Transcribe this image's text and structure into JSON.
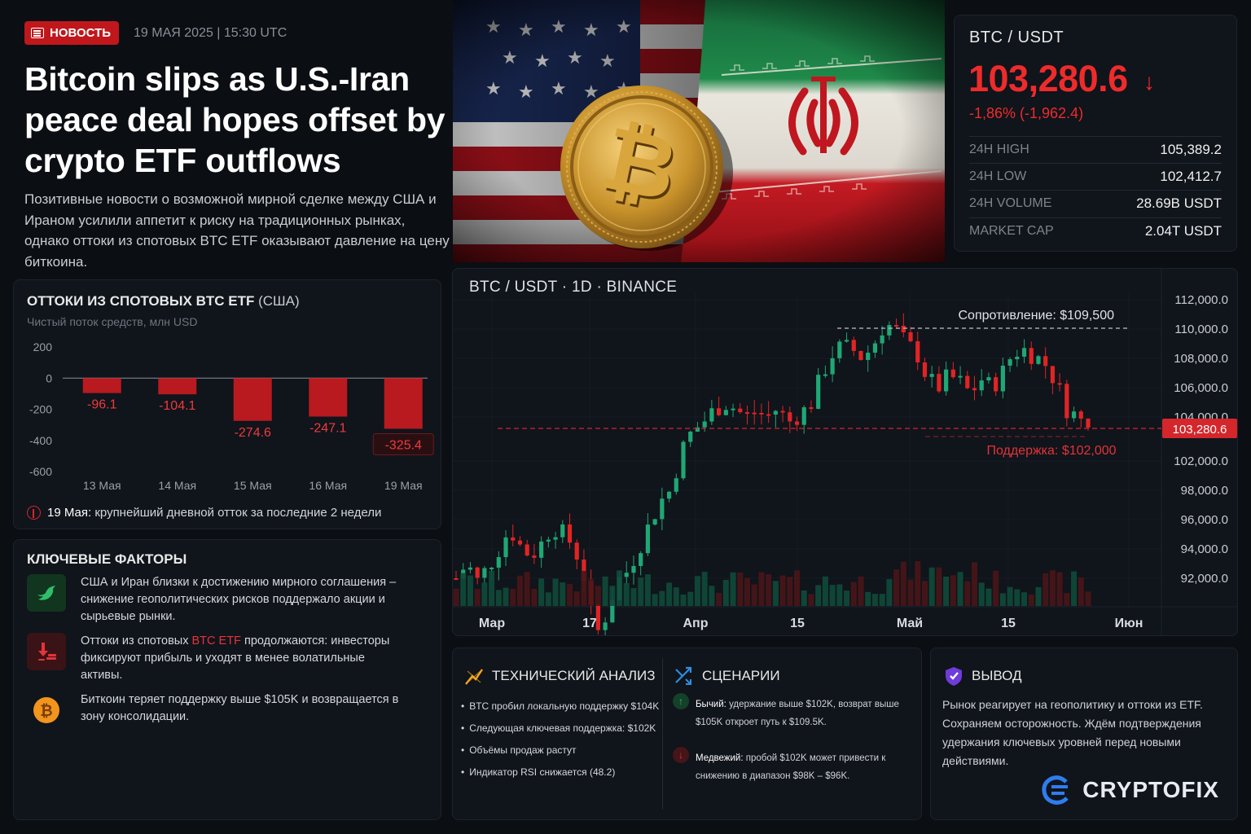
{
  "header": {
    "tag": "НОВОСТЬ",
    "date": "19 МАЯ 2025 | 15:30 UTC",
    "title": "Bitcoin slips as U.S.-Iran peace deal hopes offset by crypto ETF outflows",
    "lead": "Позитивные новости о возможной мирной сделке между США и Ираном усилили аппетит к риску на традиционных рынках, однако оттоки из спотовых BTC ETF оказывают давление на цену биткоина."
  },
  "ticker": {
    "pair": "BTC / USDT",
    "price": "103,280.6",
    "change": "-1,86% (-1,962.4)",
    "stats": [
      {
        "label": "24H HIGH",
        "value": "105,389.2"
      },
      {
        "label": "24H LOW",
        "value": "102,412.7"
      },
      {
        "label": "24H VOLUME",
        "value": "28.69B USDT"
      },
      {
        "label": "MARKET CAP",
        "value": "2.04T USDT"
      }
    ],
    "colors": {
      "down": "#ee2b2b",
      "up": "#1fa774"
    }
  },
  "etf": {
    "title": "ОТТОКИ ИЗ СПОТОВЫХ BTC ETF",
    "title_suffix": "(США)",
    "subtitle": "Чистый поток средств, млн USD",
    "note_date": "19 Мая:",
    "note_text": "крупнейший дневной отток за последние 2 недели"
  },
  "factors": {
    "title": "КЛЮЧЕВЫЕ ФАКТОРЫ",
    "items": [
      {
        "icon": "dove-icon",
        "text": "США и Иран близки к достижению мирного соглашения – снижение геополитических рисков поддержало акции и сырьевые рынки."
      },
      {
        "icon": "outflow-icon",
        "text_pre": "Оттоки из спотовых",
        "text_hl": "BTC ETF",
        "text_post": "продолжаются: инвесторы фиксируют прибыль и уходят в менее волатильные активы."
      },
      {
        "icon": "bitcoin-coin-icon",
        "text": "Биткоин теряет поддержку выше $105K и возвращается в зону консолидации."
      }
    ]
  },
  "chart_data": [
    {
      "type": "bar",
      "categories": [
        "13 Мая",
        "14 Мая",
        "15 Мая",
        "16 Мая",
        "19 Мая"
      ],
      "values": [
        -96.1,
        -104.1,
        -274.6,
        -247.1,
        -325.4
      ],
      "value_labels": [
        "-96.1",
        "-104.1",
        "-274.6",
        "-247.1",
        "-325.4"
      ],
      "ylim": [
        -600,
        200
      ],
      "yticks": [
        200,
        0,
        -200,
        -400,
        -600
      ],
      "ytick_labels": [
        "200",
        "0",
        "-200",
        "-400",
        "-600"
      ],
      "bar_color": "#b81a1f"
    },
    {
      "type": "candlestick",
      "title": "BTC / USDT · 1D · BINANCE",
      "xtick_labels": [
        "Мар",
        "17",
        "Апр",
        "15",
        "Май",
        "15",
        "Июн"
      ],
      "ytick_labels": [
        "112,000.0",
        "110,000.0",
        "108,000.0",
        "106,000.0",
        "104,000.0",
        "102,000.0",
        "98,000.0",
        "96,000.0",
        "94,000.0",
        "92,000.0"
      ],
      "resistance_label": "Сопротивление: $109,500",
      "support_label": "Поддержка: $102,000",
      "last_price_label": "103,280.6",
      "close_path": [
        93.0,
        94.0,
        92.8,
        93.8,
        95.0,
        96.4,
        95.2,
        94.5,
        95.4,
        96.6,
        96.0,
        95.2,
        93.0,
        89.0,
        90.5,
        92.8,
        93.5,
        95.0,
        96.6,
        98.2,
        99.0,
        101.6,
        103.0,
        103.6,
        104.4,
        105.0,
        104.6,
        104.0,
        104.4,
        104.0,
        104.6,
        103.6,
        104.2,
        104.7,
        106.6,
        108.2,
        108.8,
        108.6,
        108.0,
        109.0,
        110.4,
        110.0,
        109.0,
        108.4,
        106.6,
        106.0,
        106.8,
        106.4,
        105.6,
        106.6,
        106.0,
        107.0,
        108.4,
        108.6,
        108.2,
        107.6,
        106.4,
        104.6,
        104.0,
        103.28
      ],
      "up_color": "#1fa774",
      "down_color": "#e02424"
    }
  ],
  "technical": {
    "title": "ТЕХНИЧЕСКИЙ АНАЛИЗ",
    "bullets": [
      "BTC пробил локальную поддержку $104K",
      "Следующая ключевая поддержка: $102K",
      "Объёмы продаж растут",
      "Индикатор RSI снижается (48.2)"
    ]
  },
  "scenarios": {
    "title": "СЦЕНАРИИ",
    "bull_label": "Бычий:",
    "bull_text": "удержание выше $102K, возврат выше $105K откроет путь к $109.5K.",
    "bear_label": "Медвежий:",
    "bear_text": "пробой $102K может привести к снижению в диапазон $98K – $96K."
  },
  "conclusion": {
    "title": "ВЫВОД",
    "text": "Рынок реагирует на геополитику и оттоки из ETF. Сохраняем осторожность. Ждём подтверждения удержания ключевых уровней перед новыми действиями.",
    "brand": "CRYPTOFIX"
  }
}
